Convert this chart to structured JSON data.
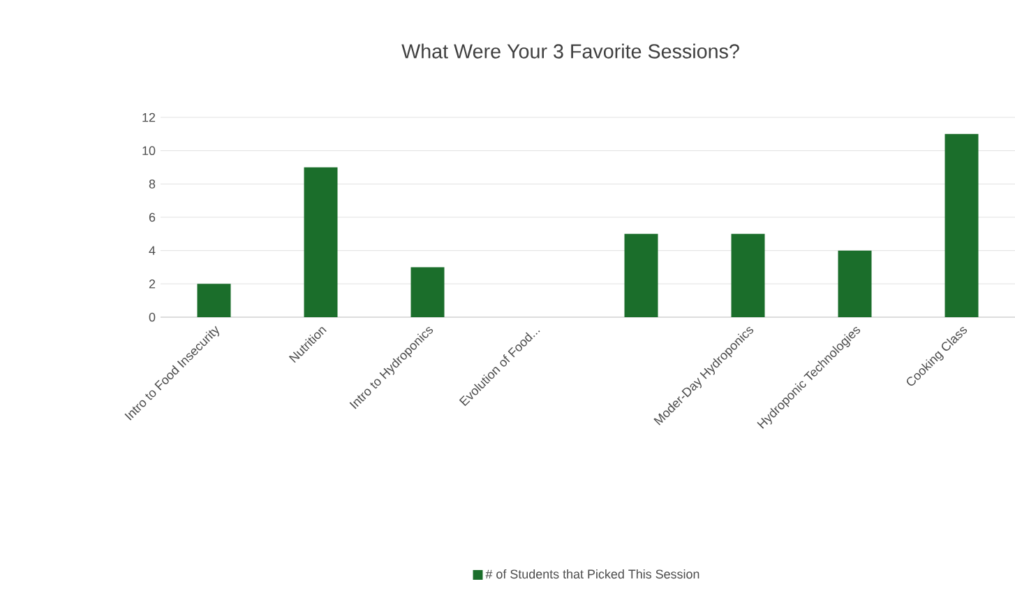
{
  "chart_data": {
    "type": "bar",
    "title": "What Were Your 3 Favorite Sessions?",
    "categories": [
      "Intro to Food Insecurity",
      "Nutrition",
      "Intro to Hydroponics",
      "Evolution of Food...",
      null,
      "Moder-Day Hydroponics",
      "Hydroponic Technologies",
      "Cooking Class"
    ],
    "series": [
      {
        "name": "# of Students that Picked This Session",
        "color": "#1b6e2b",
        "values": [
          2,
          9,
          3,
          0,
          5,
          5,
          4,
          11
        ]
      }
    ],
    "ylim": [
      0,
      12
    ],
    "yticks": [
      0,
      2,
      4,
      6,
      8,
      10,
      12
    ],
    "grid": "y",
    "legend": "bottom"
  }
}
